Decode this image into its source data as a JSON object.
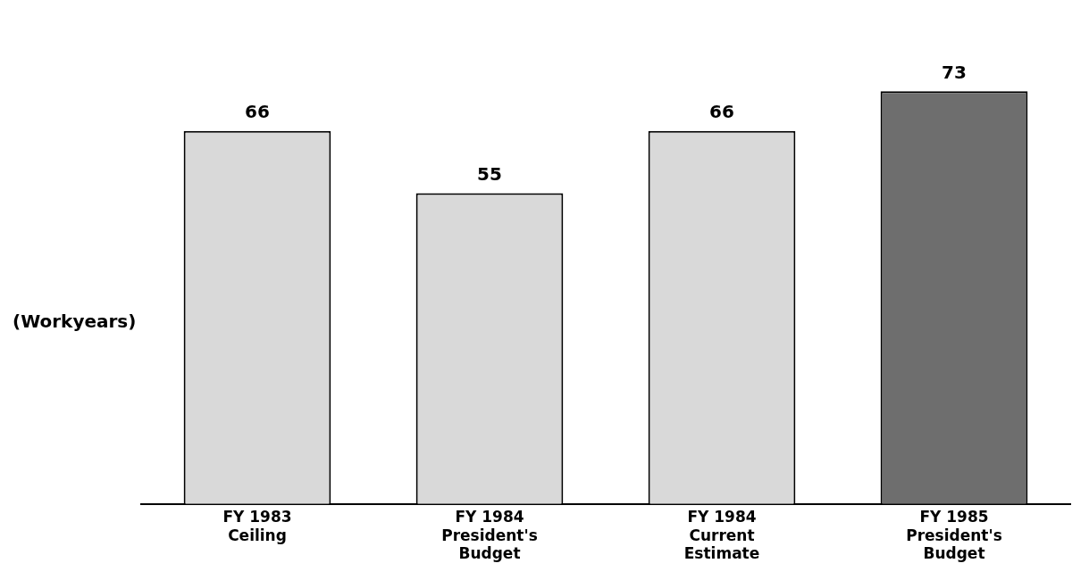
{
  "chart_data": {
    "type": "bar",
    "ylabel": "(Workyears)",
    "categories": [
      "FY 1983\nCeiling",
      "FY 1984\nPresident's\nBudget",
      "FY 1984\nCurrent\nEstimate",
      "FY 1985\nPresident's\nBudget"
    ],
    "values": [
      66,
      55,
      66,
      73
    ],
    "colors": [
      "#d9d9d9",
      "#d9d9d9",
      "#d9d9d9",
      "#6e6e6e"
    ],
    "data_labels": true,
    "grid": false,
    "legend": false
  }
}
